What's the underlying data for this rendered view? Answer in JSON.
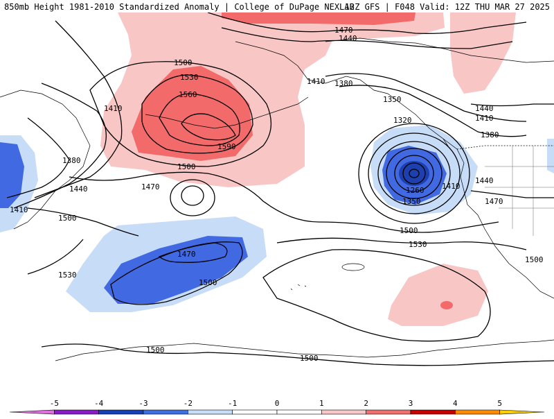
{
  "header": {
    "title": "850mb Height 1981-2010 Standardized Anomaly | College of DuPage NEXLAB",
    "run_info": "12Z GFS | F048 Valid: 12Z THU MAR 27 2025"
  },
  "contour_labels": [
    "1470",
    "1440",
    "1410",
    "1380",
    "1350",
    "1320",
    "1260",
    "1350",
    "1410",
    "1440",
    "1410",
    "1380",
    "1440",
    "1470",
    "1500",
    "1530",
    "1500",
    "1530",
    "1560",
    "1590",
    "1500",
    "1470",
    "1410",
    "1380",
    "1440",
    "1410",
    "1500",
    "1530",
    "1470",
    "1500",
    "1500",
    "1500",
    "1500",
    "1410",
    "1500"
  ],
  "colorbar": {
    "ticks": [
      "-5",
      "-4",
      "-3",
      "-2",
      "-1",
      "0",
      "1",
      "2",
      "3",
      "4",
      "5"
    ],
    "colors": [
      "#e070e0",
      "#8a1cc8",
      "#1640b8",
      "#3f6ee0",
      "#c8def8",
      "#ffffff",
      "#ffffff",
      "#f8c8c8",
      "#f07070",
      "#c80000",
      "#ff8c00",
      "#ffd000"
    ]
  },
  "anomaly_colors": {
    "light_pink": "#f9c6c6",
    "red": "#f26a6a",
    "light_blue": "#c7dcf7",
    "blue": "#4169e1",
    "dark_blue": "#1e3fae"
  }
}
